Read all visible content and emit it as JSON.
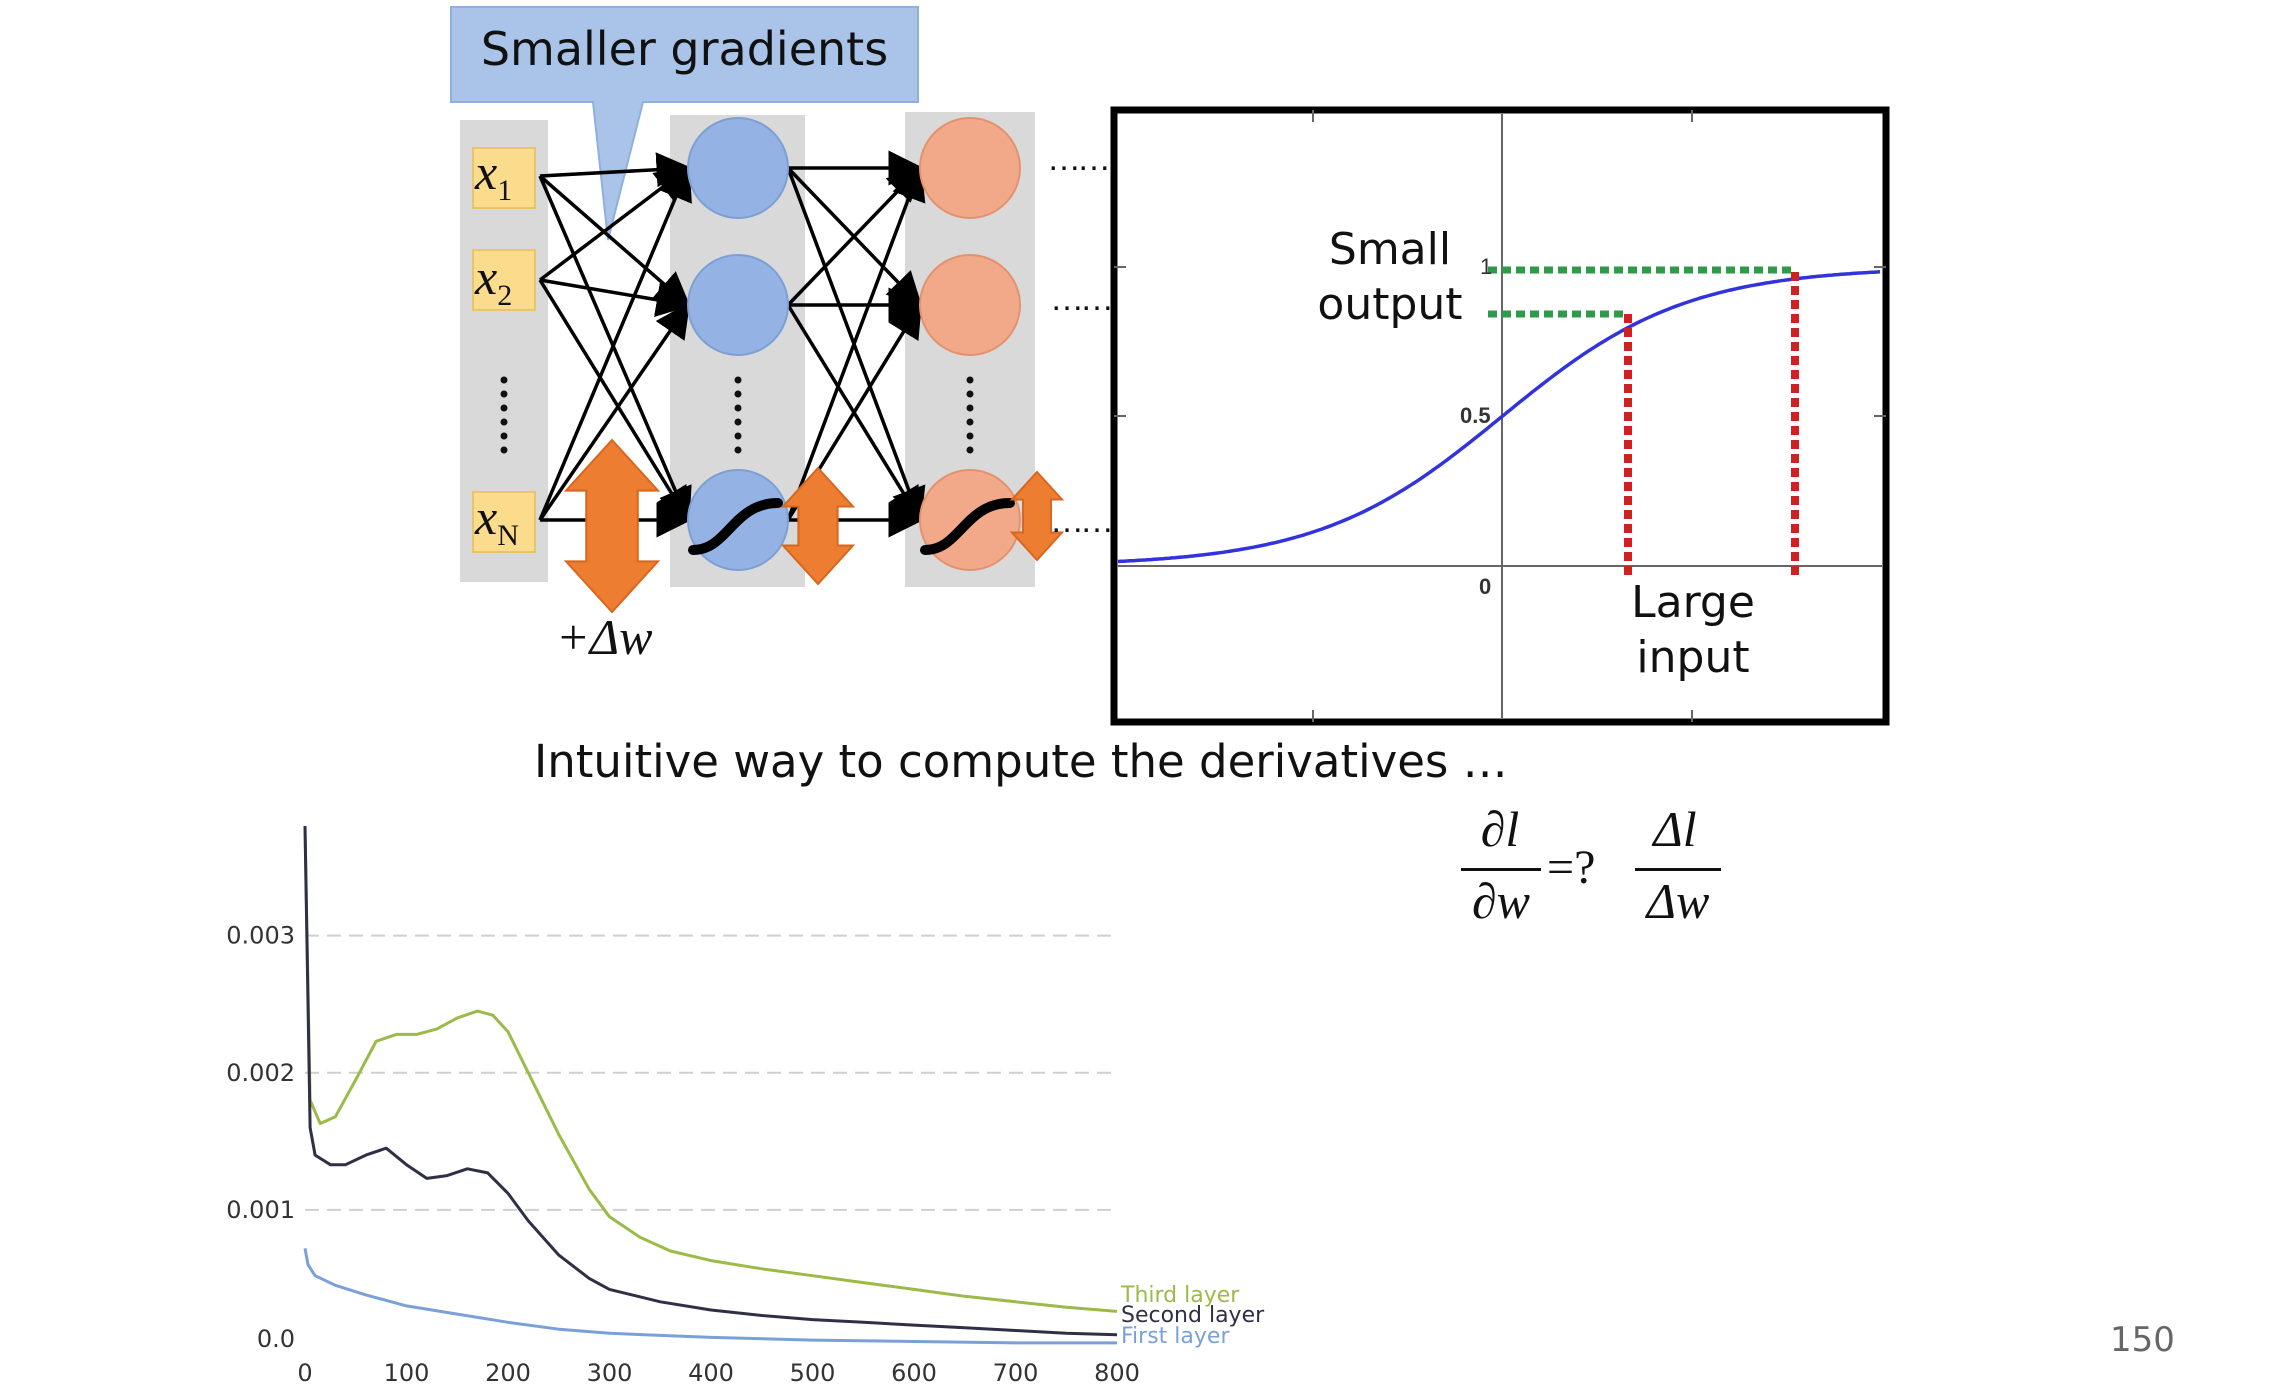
{
  "slide": {
    "callout": "Smaller gradients",
    "caption": "Intuitive way to compute the derivatives …",
    "page_number": "150",
    "delta_w_label": "+Δw",
    "equation": {
      "lhs_num": "∂l",
      "lhs_den": "∂w",
      "op": "=?",
      "rhs_num": "Δl",
      "rhs_den": "Δw"
    }
  },
  "network": {
    "inputs": [
      {
        "var": "x",
        "sub": "1"
      },
      {
        "var": "x",
        "sub": "2"
      },
      {
        "var": "x",
        "sub": "N"
      }
    ],
    "ellipsis": "……",
    "colors": {
      "input_box": "#fbdc8c",
      "layer1": "#94b3e4",
      "layer2": "#f2a98a",
      "arrow": "#ed7d31",
      "column_bg": "#d9d9d9",
      "callout": "#a9c4e8"
    }
  },
  "sigmoid_plot": {
    "labels": {
      "small_output": "Small output",
      "large_input": "Large input",
      "tick_one": "1",
      "tick_half": "0.5",
      "tick_zero": "0"
    },
    "colors": {
      "curve": "#3333dd",
      "green_dash": "#2e9a4a",
      "red_dash": "#cc2222"
    }
  },
  "chart_data": {
    "type": "line",
    "title": "",
    "xlabel": "",
    "ylabel": "",
    "xlim": [
      0,
      800
    ],
    "ylim": [
      0,
      0.0038
    ],
    "xticks": [
      "0",
      "100",
      "200",
      "300",
      "400",
      "500",
      "600",
      "700",
      "800"
    ],
    "yticks": [
      {
        "v": 0.0,
        "t": "0.0"
      },
      {
        "v": 0.001,
        "t": "0.001"
      },
      {
        "v": 0.002,
        "t": "0.002"
      },
      {
        "v": 0.003,
        "t": "0.003"
      }
    ],
    "grid": "horizontal-dashed",
    "legend": "inline at line ends",
    "series": [
      {
        "name": "Third layer",
        "color": "#9cba48",
        "x": [
          0,
          5,
          15,
          30,
          50,
          70,
          90,
          110,
          130,
          150,
          170,
          185,
          200,
          220,
          250,
          280,
          300,
          330,
          360,
          400,
          450,
          500,
          550,
          600,
          650,
          700,
          750,
          800
        ],
        "y": [
          0.0038,
          0.0018,
          0.00163,
          0.00168,
          0.00195,
          0.00223,
          0.00228,
          0.00228,
          0.00232,
          0.0024,
          0.00245,
          0.00242,
          0.0023,
          0.002,
          0.00155,
          0.00115,
          0.00095,
          0.0008,
          0.0007,
          0.00063,
          0.00057,
          0.00052,
          0.00047,
          0.00042,
          0.00037,
          0.00033,
          0.00029,
          0.00026
        ]
      },
      {
        "name": "Second layer",
        "color": "#2f2f45",
        "x": [
          0,
          5,
          10,
          25,
          40,
          60,
          80,
          100,
          120,
          140,
          160,
          180,
          200,
          220,
          250,
          280,
          300,
          350,
          400,
          450,
          500,
          550,
          600,
          650,
          700,
          750,
          800
        ],
        "y": [
          0.0038,
          0.0016,
          0.0014,
          0.00133,
          0.00133,
          0.0014,
          0.00145,
          0.00133,
          0.00123,
          0.00125,
          0.0013,
          0.00127,
          0.00112,
          0.00092,
          0.00067,
          0.0005,
          0.00042,
          0.00033,
          0.00027,
          0.00023,
          0.0002,
          0.00018,
          0.00016,
          0.00014,
          0.00012,
          0.0001,
          9e-05
        ]
      },
      {
        "name": "First layer",
        "color": "#7ba0d8",
        "x": [
          0,
          3,
          10,
          30,
          60,
          100,
          150,
          200,
          250,
          300,
          400,
          500,
          600,
          700,
          800
        ],
        "y": [
          0.00072,
          0.0006,
          0.00052,
          0.00045,
          0.00038,
          0.0003,
          0.00024,
          0.00018,
          0.00013,
          0.0001,
          7e-05,
          5e-05,
          4e-05,
          3e-05,
          3e-05
        ]
      }
    ]
  }
}
